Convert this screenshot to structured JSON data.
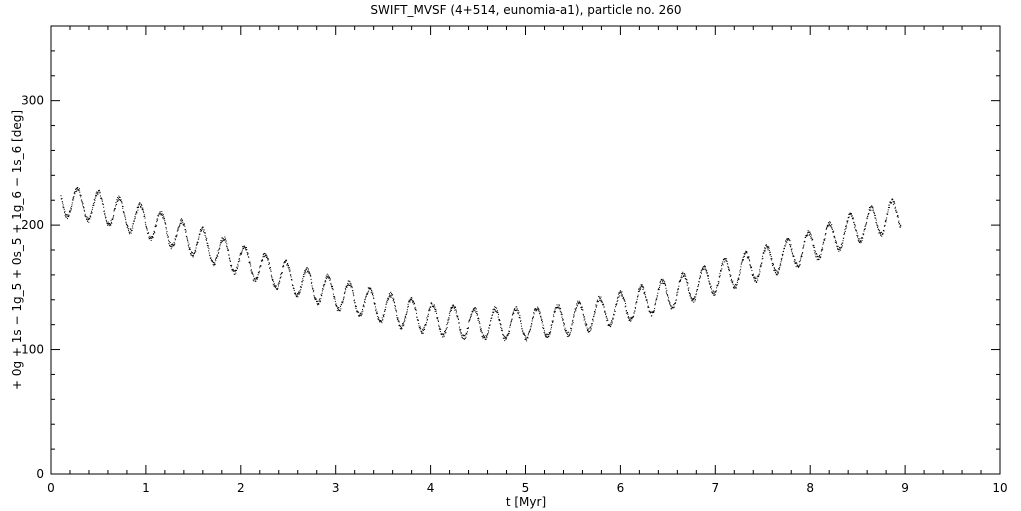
{
  "chart_data": {
    "type": "scatter",
    "title": "SWIFT_MVSF (4+514, eunomia-a1), particle no. 260",
    "xlabel": "t [Myr]",
    "ylabel": "+ 0g + 1s − 1g_5 + 0s_5 + 1g_6 − 1s_6 [deg]",
    "xlim": [
      0,
      10
    ],
    "ylim": [
      0,
      360
    ],
    "xticks": [
      0,
      1,
      2,
      3,
      4,
      5,
      6,
      7,
      8,
      9,
      10
    ],
    "yticks": [
      0,
      100,
      200,
      300
    ],
    "grid": false,
    "marker_color": "#000000",
    "series": [
      {
        "trend_x": [
          0.1,
          0.5,
          1.0,
          1.5,
          2.0,
          2.5,
          3.0,
          3.5,
          4.0,
          4.5,
          5.0,
          5.5,
          6.0,
          6.5,
          7.0,
          7.5,
          8.0,
          8.5,
          8.95
        ],
        "trend_y": [
          220,
          215,
          203,
          188,
          172,
          158,
          145,
          134,
          125,
          121,
          121,
          125,
          134,
          145,
          158,
          170,
          183,
          199,
          210
        ],
        "time_range": [
          0.1,
          8.95
        ],
        "oscillation_amplitude": 12,
        "oscillation_period": 0.22
      }
    ]
  }
}
